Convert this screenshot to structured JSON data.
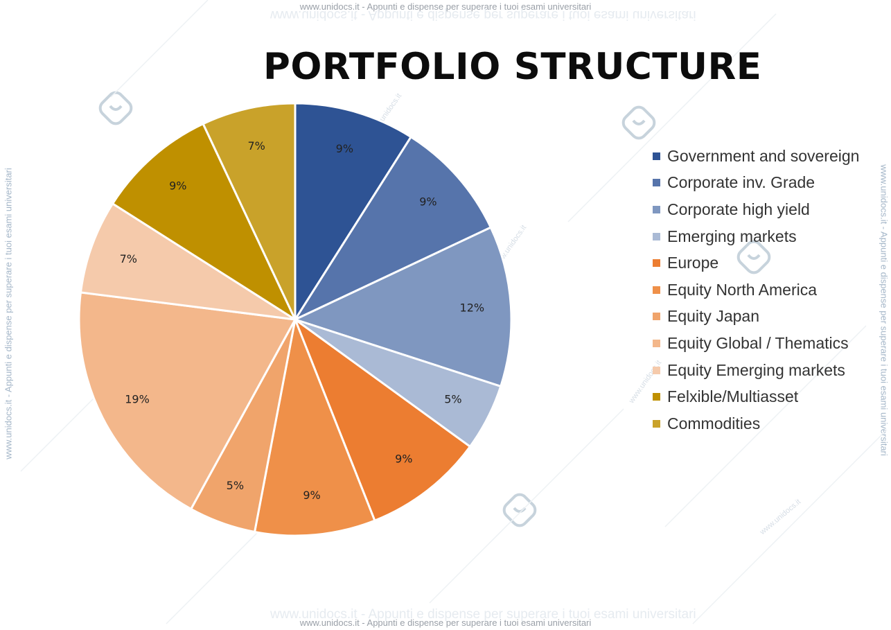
{
  "page": {
    "title": "PORTFOLIO STRUCTURE",
    "watermark": {
      "top": "www.unidocs.it - Appunti e dispense per superare i tuoi esami universitari",
      "bottom": "www.unidocs.it - Appunti e dispense per superare i tuoi esami universitari",
      "side": "www.unidocs.it - Appunti e dispense per superare i tuoi esami universitari",
      "site": "www.unidocs.it"
    }
  },
  "chart_data": {
    "type": "pie",
    "title": "PORTFOLIO STRUCTURE",
    "start_angle_deg": 0,
    "direction": "clockwise",
    "legend_position": "right",
    "slices": [
      {
        "label": "Government and sovereign",
        "value": 9,
        "display": "9%",
        "color": "#2e5394"
      },
      {
        "label": "Corporate inv. Grade",
        "value": 9,
        "display": "9%",
        "color": "#5674ab"
      },
      {
        "label": "Corporate high yield",
        "value": 12,
        "display": "12%",
        "color": "#7f97c0"
      },
      {
        "label": "Emerging markets",
        "value": 5,
        "display": "5%",
        "color": "#aabad5"
      },
      {
        "label": "Europe",
        "value": 9,
        "display": "9%",
        "color": "#ec7d31"
      },
      {
        "label": "Equity North America",
        "value": 9,
        "display": "9%",
        "color": "#ef9049"
      },
      {
        "label": "Equity Japan",
        "value": 5,
        "display": "5%",
        "color": "#f0a46b"
      },
      {
        "label": "Equity Global / Thematics",
        "value": 19,
        "display": "19%",
        "color": "#f3b78b"
      },
      {
        "label": "Equity Emerging markets",
        "value": 7,
        "display": "7%",
        "color": "#f5caab"
      },
      {
        "label": "Felxible/Multiasset",
        "value": 9,
        "display": "9%",
        "color": "#bf9000"
      },
      {
        "label": "Commodities",
        "value": 7,
        "display": "7%",
        "color": "#c9a22a"
      }
    ]
  }
}
